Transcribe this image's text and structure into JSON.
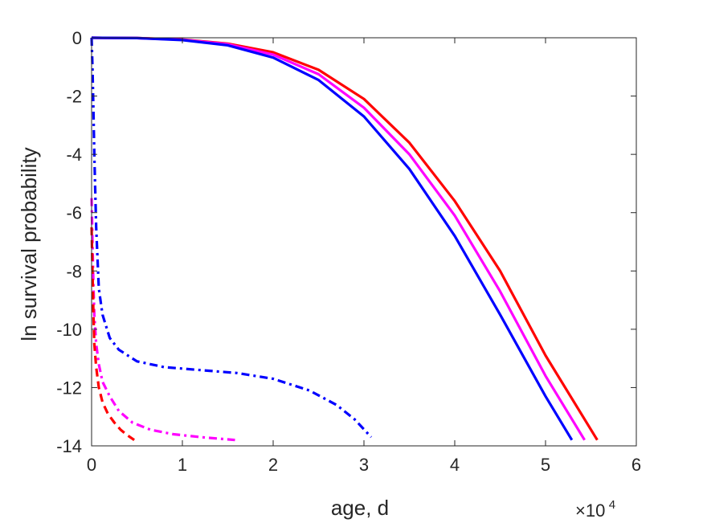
{
  "chart_data": {
    "type": "line",
    "title": "",
    "xlabel": "age, d",
    "ylabel": "ln survival probability",
    "x_exponent_label": {
      "base": "×10",
      "power": "4"
    },
    "xlim": [
      0,
      60000
    ],
    "ylim": [
      -14,
      0
    ],
    "xticks": [
      0,
      10000,
      20000,
      30000,
      40000,
      50000,
      60000
    ],
    "xtick_labels": [
      "0",
      "1",
      "2",
      "3",
      "4",
      "5",
      "6"
    ],
    "yticks": [
      0,
      -2,
      -4,
      -6,
      -8,
      -10,
      -12,
      -14
    ],
    "ytick_labels": [
      "0",
      "-2",
      "-4",
      "-6",
      "-8",
      "-10",
      "-12",
      "-14"
    ],
    "grid": false,
    "box": true,
    "series": [
      {
        "color": "#ff0000",
        "style": "solid",
        "x": [
          0,
          5000,
          10000,
          15000,
          20000,
          25000,
          30000,
          35000,
          40000,
          45000,
          50000,
          55700
        ],
        "y": [
          0,
          -0.01,
          -0.06,
          -0.2,
          -0.5,
          -1.1,
          -2.1,
          -3.6,
          -5.6,
          -8.0,
          -10.9,
          -13.8
        ]
      },
      {
        "color": "#ff00ff",
        "style": "solid",
        "x": [
          0,
          5000,
          10000,
          15000,
          20000,
          25000,
          30000,
          35000,
          40000,
          45000,
          50000,
          54300
        ],
        "y": [
          0,
          -0.01,
          -0.07,
          -0.22,
          -0.58,
          -1.25,
          -2.4,
          -4.0,
          -6.1,
          -8.7,
          -11.6,
          -13.8
        ]
      },
      {
        "color": "#0000ff",
        "style": "solid",
        "x": [
          0,
          5000,
          10000,
          15000,
          20000,
          25000,
          30000,
          35000,
          40000,
          45000,
          50000,
          52900
        ],
        "y": [
          0,
          -0.01,
          -0.08,
          -0.26,
          -0.68,
          -1.45,
          -2.7,
          -4.5,
          -6.8,
          -9.5,
          -12.3,
          -13.8
        ]
      },
      {
        "color": "#0000ff",
        "style": "dashdot",
        "x": [
          0,
          100,
          200,
          300,
          500,
          800,
          1200,
          2000,
          3000,
          5000,
          8000,
          12000,
          16000,
          20000,
          24000,
          27000,
          29000,
          30800
        ],
        "y": [
          0,
          -1,
          -2.5,
          -4,
          -6.5,
          -8.6,
          -9.5,
          -10.3,
          -10.7,
          -11.1,
          -11.3,
          -11.4,
          -11.5,
          -11.7,
          -12.1,
          -12.6,
          -13.1,
          -13.7
        ]
      },
      {
        "color": "#ff00ff",
        "style": "dashdot",
        "x": [
          0,
          100,
          200,
          300,
          500,
          800,
          1200,
          2000,
          3000,
          4500,
          6500,
          9000,
          12000,
          15800
        ],
        "y": [
          -5.5,
          -7,
          -8.5,
          -9.5,
          -10.5,
          -11.2,
          -11.8,
          -12.3,
          -12.8,
          -13.2,
          -13.45,
          -13.6,
          -13.7,
          -13.8
        ]
      },
      {
        "color": "#ff0000",
        "style": "dashed",
        "x": [
          0,
          100,
          200,
          300,
          500,
          800,
          1200,
          1800,
          2500,
          3200,
          4000,
          4700
        ],
        "y": [
          -6.5,
          -8,
          -9.5,
          -10.5,
          -11.3,
          -12,
          -12.5,
          -12.9,
          -13.2,
          -13.45,
          -13.65,
          -13.8
        ]
      }
    ]
  }
}
